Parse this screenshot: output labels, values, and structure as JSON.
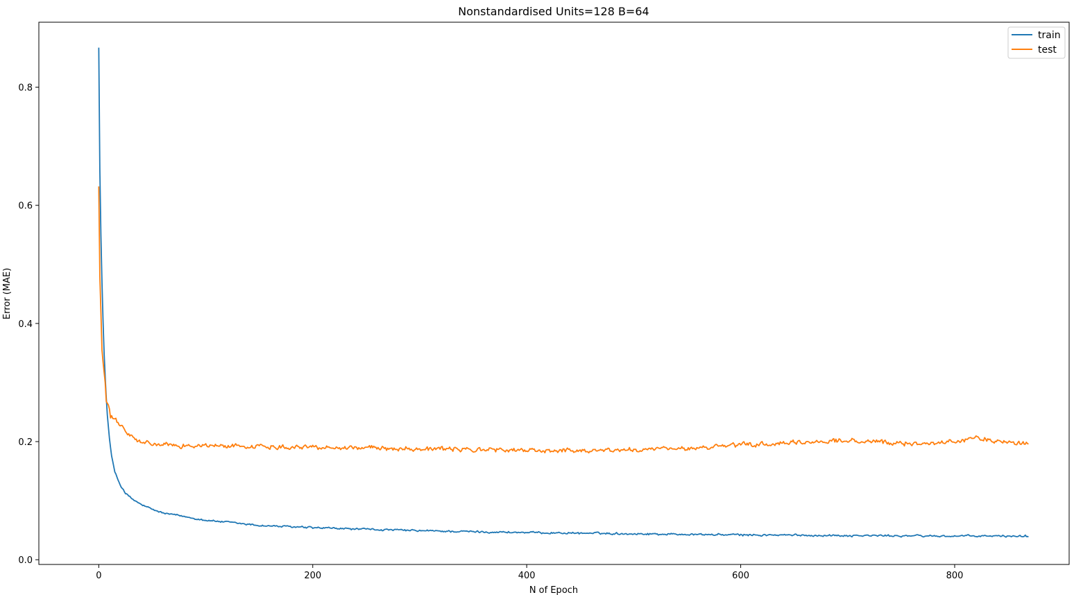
{
  "chart_data": {
    "type": "line",
    "title": "Nonstandardised Units=128 B=64",
    "xlabel": "N of Epoch",
    "ylabel": "Error (MAE)",
    "xlim": [
      -56,
      907
    ],
    "ylim": [
      -0.008,
      0.91
    ],
    "x_ticks": [
      0,
      200,
      400,
      600,
      800
    ],
    "x_tick_labels": [
      "0",
      "200",
      "400",
      "600",
      "800"
    ],
    "y_ticks": [
      0.0,
      0.2,
      0.4,
      0.6,
      0.8
    ],
    "y_tick_labels": [
      "0.0",
      "0.2",
      "0.4",
      "0.6",
      "0.8"
    ],
    "grid": false,
    "legend_position": "top-right",
    "num_epochs": 870,
    "series": [
      {
        "name": "train",
        "color": "#1f77b4",
        "keypoints": [
          [
            0,
            0.867
          ],
          [
            1,
            0.66
          ],
          [
            2,
            0.55
          ],
          [
            3,
            0.47
          ],
          [
            4,
            0.405
          ],
          [
            5,
            0.35
          ],
          [
            6,
            0.31
          ],
          [
            7,
            0.275
          ],
          [
            8,
            0.245
          ],
          [
            10,
            0.205
          ],
          [
            12,
            0.175
          ],
          [
            15,
            0.148
          ],
          [
            20,
            0.127
          ],
          [
            25,
            0.113
          ],
          [
            30,
            0.104
          ],
          [
            40,
            0.093
          ],
          [
            50,
            0.085
          ],
          [
            60,
            0.079
          ],
          [
            80,
            0.073
          ],
          [
            100,
            0.067
          ],
          [
            150,
            0.058
          ],
          [
            200,
            0.054
          ],
          [
            300,
            0.049
          ],
          [
            400,
            0.046
          ],
          [
            500,
            0.044
          ],
          [
            600,
            0.042
          ],
          [
            700,
            0.041
          ],
          [
            800,
            0.04
          ],
          [
            869,
            0.04
          ]
        ],
        "noise": 0.0012
      },
      {
        "name": "test",
        "color": "#ff7f0e",
        "keypoints": [
          [
            0,
            0.632
          ],
          [
            1,
            0.48
          ],
          [
            2,
            0.42
          ],
          [
            3,
            0.355
          ],
          [
            4,
            0.335
          ],
          [
            6,
            0.3
          ],
          [
            7,
            0.268
          ],
          [
            9,
            0.262
          ],
          [
            10,
            0.255
          ],
          [
            11,
            0.24
          ],
          [
            15,
            0.238
          ],
          [
            20,
            0.228
          ],
          [
            25,
            0.218
          ],
          [
            30,
            0.208
          ],
          [
            40,
            0.198
          ],
          [
            60,
            0.194
          ],
          [
            100,
            0.193
          ],
          [
            150,
            0.192
          ],
          [
            200,
            0.191
          ],
          [
            300,
            0.188
          ],
          [
            400,
            0.185
          ],
          [
            450,
            0.185
          ],
          [
            500,
            0.186
          ],
          [
            550,
            0.188
          ],
          [
            600,
            0.194
          ],
          [
            650,
            0.197
          ],
          [
            690,
            0.202
          ],
          [
            750,
            0.197
          ],
          [
            800,
            0.199
          ],
          [
            820,
            0.207
          ],
          [
            850,
            0.198
          ],
          [
            869,
            0.199
          ]
        ],
        "noise": 0.0028
      }
    ]
  }
}
